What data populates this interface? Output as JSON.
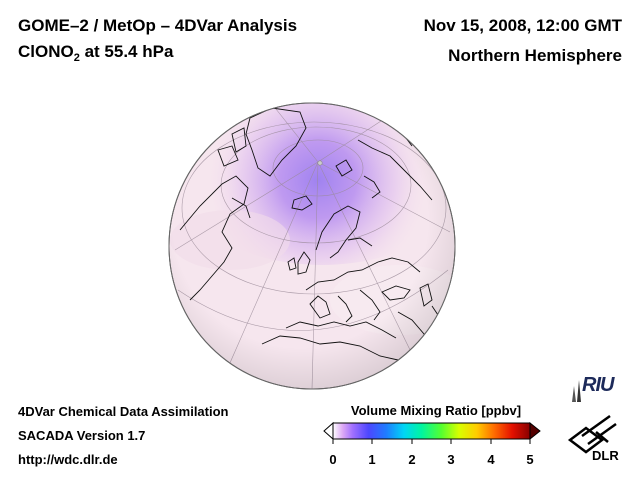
{
  "header": {
    "title_line1": "GOME–2 / MetOp – 4DVar Analysis",
    "species": "ClONO",
    "species_subscript": "2",
    "level_suffix": " at 55.4 hPa",
    "date": "Nov 15, 2008, 12:00 GMT",
    "region": "Northern Hemisphere"
  },
  "footer": {
    "line1": "4DVar Chemical Data Assimilation",
    "line2": "SACADA Version 1.7",
    "line3": "http://wdc.dlr.de"
  },
  "colorbar": {
    "title": "Volume Mixing Ratio [ppbv]",
    "ticks": [
      "0",
      "1",
      "2",
      "3",
      "4",
      "5"
    ],
    "colors": [
      "#ffffff",
      "#cc66ff",
      "#6633ff",
      "#3366ff",
      "#00ccff",
      "#00ff99",
      "#66ff00",
      "#ffff00",
      "#ffaa00",
      "#ff4400",
      "#cc0000",
      "#880000"
    ]
  },
  "logos": {
    "riu": "RIU",
    "dlr": "DLR"
  },
  "colors": {
    "globe_base": "#f6e6ee",
    "polar_purple": "#b58cf0",
    "coast": "#111111"
  }
}
